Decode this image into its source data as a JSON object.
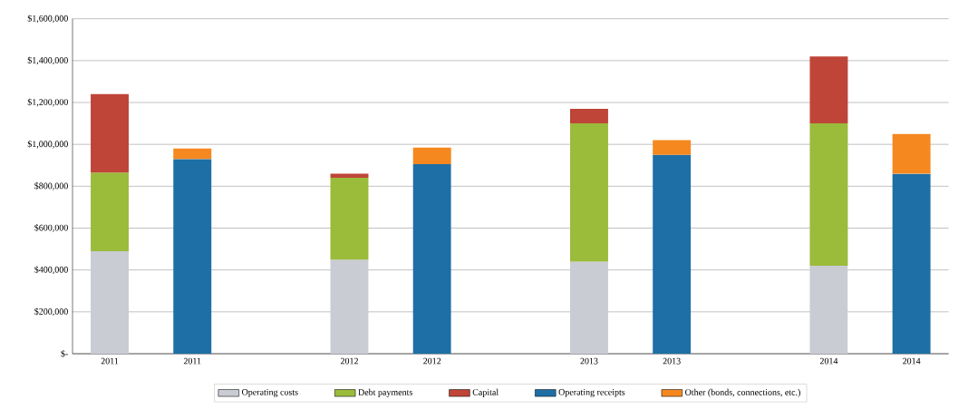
{
  "chart_data": {
    "type": "bar",
    "stacked": true,
    "categories": [
      "2011",
      "2011",
      "2012",
      "2012",
      "2013",
      "2013",
      "2014",
      "2014"
    ],
    "series": [
      {
        "name": "Operating costs",
        "color": "#c9ccd3",
        "values": [
          490000,
          null,
          450000,
          null,
          440000,
          null,
          420000,
          null
        ]
      },
      {
        "name": "Debt payments",
        "color": "#9bbb3b",
        "values": [
          375000,
          null,
          390000,
          null,
          660000,
          null,
          680000,
          null
        ]
      },
      {
        "name": "Capital",
        "color": "#bf4538",
        "values": [
          375000,
          null,
          20000,
          null,
          70000,
          null,
          320000,
          null
        ]
      },
      {
        "name": "Operating receipts",
        "color": "#1e6fa6",
        "values": [
          null,
          930000,
          null,
          905000,
          null,
          950000,
          null,
          860000
        ]
      },
      {
        "name": "Other (bonds, connections, etc.)",
        "color": "#f5881f",
        "values": [
          null,
          50000,
          null,
          80000,
          null,
          70000,
          null,
          190000
        ]
      }
    ],
    "ylim": [
      0,
      1600000
    ],
    "yticks": [
      {
        "value": 0,
        "label": "$-"
      },
      {
        "value": 200000,
        "label": "$200,000"
      },
      {
        "value": 400000,
        "label": "$400,000"
      },
      {
        "value": 600000,
        "label": "$600,000"
      },
      {
        "value": 800000,
        "label": "$800,000"
      },
      {
        "value": 1000000,
        "label": "$1,000,000"
      },
      {
        "value": 1200000,
        "label": "$1,200,000"
      },
      {
        "value": 1400000,
        "label": "$1,400,000"
      },
      {
        "value": 1600000,
        "label": "$1,600,000"
      }
    ],
    "grid": "y",
    "legend": "bottom"
  }
}
